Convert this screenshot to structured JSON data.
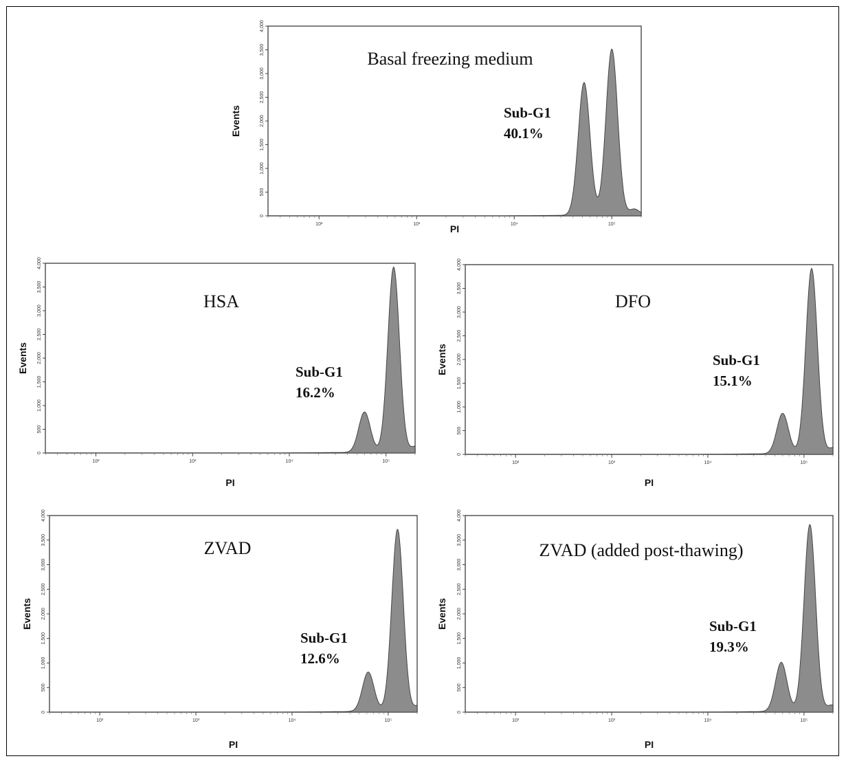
{
  "chart_data": [
    {
      "type": "area",
      "title": "Basal freezing medium",
      "xlabel": "PI",
      "ylabel": "Events",
      "x_scale": "log",
      "xlim": [
        30,
        200000
      ],
      "ylim": [
        0,
        4000
      ],
      "x_ticks": [
        "10²",
        "10³",
        "10⁴",
        "10⁵"
      ],
      "y_ticks": [
        "0",
        "500",
        "1,000",
        "1,500",
        "2,000",
        "2,500",
        "3,000",
        "3,500",
        "4,000"
      ],
      "annotation": {
        "line1": "Sub-G1",
        "line2": "40.1%"
      },
      "peaks": [
        {
          "x": 52000,
          "height": 2800
        },
        {
          "x": 100000,
          "height": 3500
        }
      ],
      "fill_color": "#8c8c8c"
    },
    {
      "type": "area",
      "title": "HSA",
      "xlabel": "PI",
      "ylabel": "Events",
      "x_scale": "log",
      "xlim": [
        30,
        200000
      ],
      "ylim": [
        0,
        4000
      ],
      "x_ticks": [
        "10²",
        "10³",
        "10⁴",
        "10⁵"
      ],
      "y_ticks": [
        "0",
        "500",
        "1,000",
        "1,500",
        "2,000",
        "2,500",
        "3,000",
        "3,500",
        "4,000"
      ],
      "annotation": {
        "line1": "Sub-G1",
        "line2": "16.2%"
      },
      "peaks": [
        {
          "x": 60000,
          "height": 850
        },
        {
          "x": 120000,
          "height": 3900
        }
      ],
      "fill_color": "#8c8c8c"
    },
    {
      "type": "area",
      "title": "DFO",
      "xlabel": "PI",
      "ylabel": "Events",
      "x_scale": "log",
      "xlim": [
        30,
        200000
      ],
      "ylim": [
        0,
        4000
      ],
      "x_ticks": [
        "10²",
        "10³",
        "10⁴",
        "10⁵"
      ],
      "y_ticks": [
        "0",
        "500",
        "1,000",
        "1,500",
        "2,000",
        "2,500",
        "3,000",
        "3,500",
        "4,000"
      ],
      "annotation": {
        "line1": "Sub-G1",
        "line2": "15.1%"
      },
      "peaks": [
        {
          "x": 60000,
          "height": 850
        },
        {
          "x": 120000,
          "height": 3900
        }
      ],
      "fill_color": "#8c8c8c"
    },
    {
      "type": "area",
      "title": "ZVAD",
      "xlabel": "PI",
      "ylabel": "Events",
      "x_scale": "log",
      "xlim": [
        30,
        200000
      ],
      "ylim": [
        0,
        4000
      ],
      "x_ticks": [
        "10²",
        "10³",
        "10⁴",
        "10⁵"
      ],
      "y_ticks": [
        "0",
        "500",
        "1,000",
        "1,500",
        "2,000",
        "2,500",
        "3,000",
        "3,500",
        "4,000"
      ],
      "annotation": {
        "line1": "Sub-G1",
        "line2": "12.6%"
      },
      "peaks": [
        {
          "x": 62000,
          "height": 800
        },
        {
          "x": 125000,
          "height": 3700
        }
      ],
      "fill_color": "#8c8c8c"
    },
    {
      "type": "area",
      "title": "ZVAD (added post-thawing)",
      "xlabel": "PI",
      "ylabel": "Events",
      "x_scale": "log",
      "xlim": [
        30,
        200000
      ],
      "ylim": [
        0,
        4000
      ],
      "x_ticks": [
        "10²",
        "10³",
        "10⁴",
        "10⁵"
      ],
      "y_ticks": [
        "0",
        "500",
        "1,000",
        "1,500",
        "2,000",
        "2,500",
        "3,000",
        "3,500",
        "4,000"
      ],
      "annotation": {
        "line1": "Sub-G1",
        "line2": "19.3%"
      },
      "peaks": [
        {
          "x": 58000,
          "height": 1000
        },
        {
          "x": 115000,
          "height": 3800
        }
      ],
      "fill_color": "#8c8c8c"
    }
  ]
}
